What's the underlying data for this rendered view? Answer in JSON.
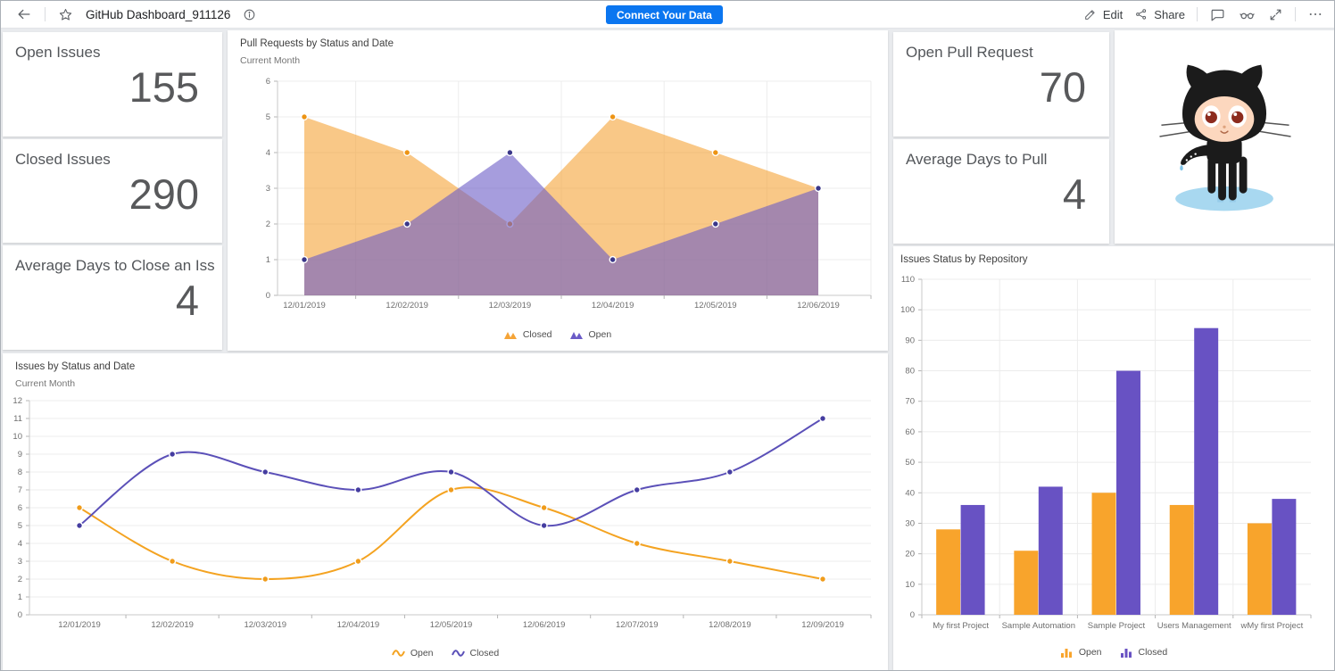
{
  "toolbar": {
    "title": "GitHub Dashboard_911126",
    "connect_button_label": "Connect Your Data",
    "edit_label": "Edit",
    "share_label": "Share"
  },
  "kpi_cards": {
    "open_issues": {
      "title": "Open Issues",
      "value": "155"
    },
    "closed_issues": {
      "title": "Closed Issues",
      "value": "290"
    },
    "avg_days_close": {
      "title": "Average Days to Close an Iss",
      "value": "4"
    },
    "open_pull_request": {
      "title": "Open Pull Request",
      "value": "70"
    },
    "avg_days_pull": {
      "title": "Average Days to Pull",
      "value": "4"
    }
  },
  "octocat": {
    "name": "github-octocat-illustration"
  },
  "colors": {
    "button_blue": "#0b76f0",
    "orange": "#F8A42C",
    "purple": "#6852C3"
  },
  "chart_data": [
    {
      "type": "area",
      "title": "Pull Requests by Status and Date",
      "subtitle": "Current Month",
      "x": [
        "12/01/2019",
        "12/02/2019",
        "12/03/2019",
        "12/04/2019",
        "12/05/2019",
        "12/06/2019"
      ],
      "series": [
        {
          "name": "Closed",
          "color": "#F5A437",
          "marker_color": "#ED9414",
          "values": [
            5,
            4,
            2,
            5,
            4,
            3
          ]
        },
        {
          "name": "Open",
          "color": "#6A5BC7",
          "marker_color": "#3B3789",
          "values": [
            1,
            2,
            4,
            1,
            2,
            3
          ]
        }
      ],
      "ylim": [
        0,
        6
      ],
      "ystep": 1,
      "grid": "horizontal+vertical",
      "legend_position": "bottom"
    },
    {
      "type": "line",
      "title": "Issues by Status and Date",
      "subtitle": "Current Month",
      "x": [
        "12/01/2019",
        "12/02/2019",
        "12/03/2019",
        "12/04/2019",
        "12/05/2019",
        "12/06/2019",
        "12/07/2019",
        "12/08/2019",
        "12/09/2019"
      ],
      "series": [
        {
          "name": "Open",
          "color": "#F4A321",
          "marker_color": "#F09C1B",
          "values": [
            6,
            3,
            2,
            3,
            7,
            6,
            4,
            3,
            2
          ]
        },
        {
          "name": "Closed",
          "color": "#5B50B8",
          "marker_color": "#453DA0",
          "values": [
            5,
            9,
            8,
            7,
            8,
            5,
            7,
            8,
            11
          ]
        }
      ],
      "ylim": [
        0,
        12
      ],
      "ystep": 1,
      "grid": "horizontal",
      "legend_position": "bottom"
    },
    {
      "type": "bar",
      "title": "Issues Status by Repository",
      "subtitle": "",
      "categories": [
        "My first Project",
        "Sample Automation",
        "Sample Project",
        "Users Management",
        "wMy first Project"
      ],
      "series": [
        {
          "name": "Open",
          "color": "#F8A42C",
          "values": [
            28,
            21,
            40,
            36,
            30
          ]
        },
        {
          "name": "Closed",
          "color": "#6852C3",
          "values": [
            36,
            42,
            80,
            94,
            38
          ]
        }
      ],
      "ylim": [
        0,
        110
      ],
      "ystep": 10,
      "grid": "horizontal",
      "legend_position": "bottom"
    }
  ]
}
